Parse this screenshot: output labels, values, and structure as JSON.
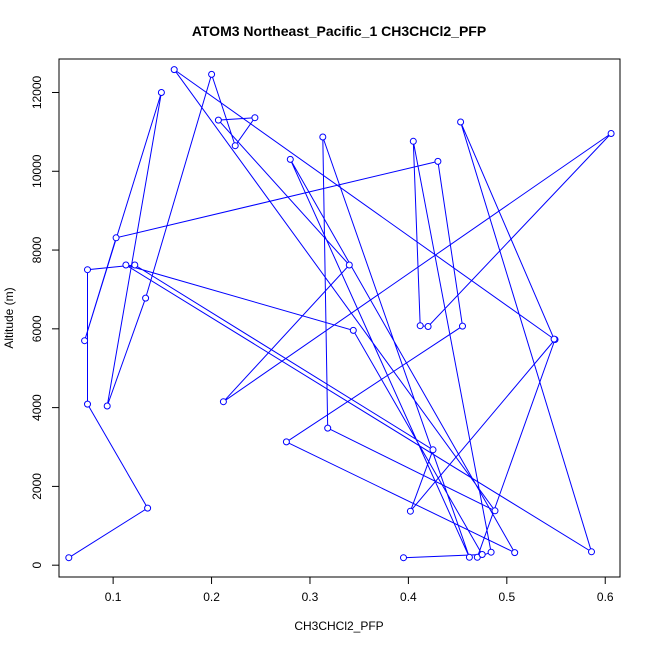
{
  "chart_data": {
    "type": "line",
    "title": "ATOM3 Northeast_Pacific_1 CH3CHCl2_PFP",
    "xlabel": "CH3CHCl2_PFP",
    "ylabel": "Altitude (m)",
    "xlim": [
      0.045,
      0.615
    ],
    "ylim": [
      -300,
      12850
    ],
    "xticks": [
      0.1,
      0.2,
      0.3,
      0.4,
      0.5,
      0.6
    ],
    "xtick_labels": [
      "0.1",
      "0.2",
      "0.3",
      "0.4",
      "0.5",
      "0.6"
    ],
    "yticks": [
      0,
      2000,
      4000,
      6000,
      8000,
      10000,
      12000
    ],
    "ytick_labels": [
      "0",
      "2000",
      "4000",
      "6000",
      "8000",
      "10000",
      "12000"
    ],
    "colors": {
      "series": "#0000ff"
    },
    "series": [
      {
        "points": [
          [
            0.055,
            190
          ],
          [
            0.135,
            1450
          ],
          [
            0.074,
            4090
          ],
          [
            0.074,
            7500
          ],
          [
            0.122,
            7620
          ],
          [
            0.425,
            2930
          ],
          [
            0.402,
            1370
          ],
          [
            0.549,
            5730
          ],
          [
            0.47,
            200
          ],
          [
            0.484,
            330
          ],
          [
            0.405,
            10760
          ],
          [
            0.412,
            6080
          ],
          [
            0.42,
            6060
          ],
          [
            0.606,
            10960
          ],
          [
            0.212,
            4150
          ],
          [
            0.34,
            7620
          ],
          [
            0.207,
            11300
          ],
          [
            0.244,
            11360
          ],
          [
            0.224,
            10650
          ],
          [
            0.2,
            12460
          ],
          [
            0.133,
            6780
          ],
          [
            0.094,
            4040
          ],
          [
            0.149,
            12000
          ],
          [
            0.071,
            5700
          ],
          [
            0.103,
            8310
          ],
          [
            0.43,
            10250
          ],
          [
            0.455,
            6070
          ],
          [
            0.276,
            3130
          ],
          [
            0.508,
            320
          ],
          [
            0.28,
            10300
          ],
          [
            0.462,
            200
          ],
          [
            0.313,
            10870
          ],
          [
            0.318,
            3480
          ],
          [
            0.488,
            1380
          ],
          [
            0.162,
            12580
          ],
          [
            0.548,
            5740
          ],
          [
            0.453,
            11250
          ],
          [
            0.586,
            340
          ],
          [
            0.113,
            7620
          ],
          [
            0.344,
            5960
          ],
          [
            0.475,
            270
          ],
          [
            0.395,
            190
          ]
        ]
      }
    ]
  }
}
